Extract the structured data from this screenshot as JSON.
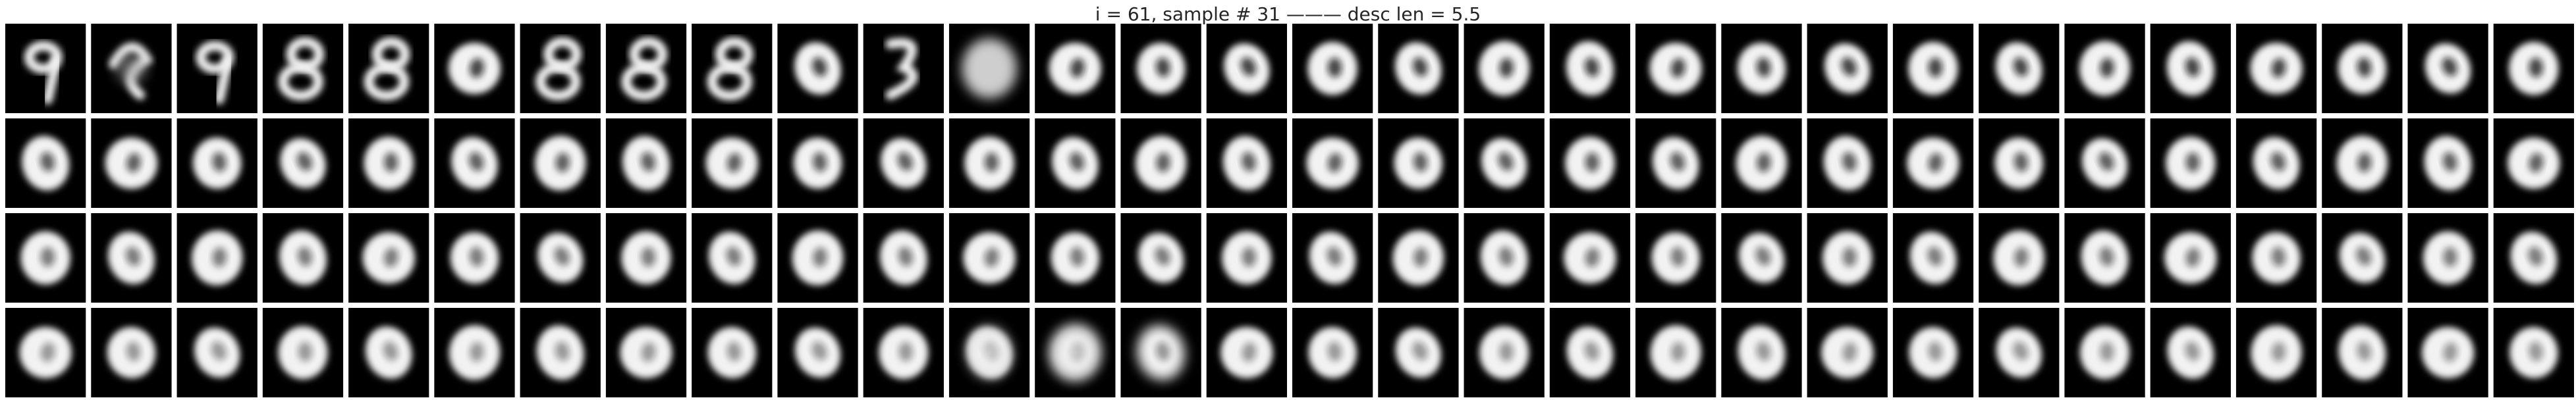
{
  "figure": {
    "title": "i = 61, sample # 31 ——— desc len = 5.5"
  },
  "grid": {
    "rows": 4,
    "cols": 30,
    "panels": [
      [
        "9",
        "scribble",
        "9",
        "8",
        "8",
        "0",
        "8",
        "8",
        "8",
        "0",
        "3",
        "blob",
        "0",
        "0",
        "0",
        "0",
        "0",
        "0",
        "0",
        "0",
        "0",
        "0",
        "0",
        "0",
        "0",
        "0",
        "0",
        "0",
        "0",
        "0"
      ],
      [
        "0",
        "0",
        "0",
        "0",
        "0",
        "0",
        "0",
        "0",
        "0",
        "0",
        "0",
        "0",
        "0",
        "0",
        "0",
        "0",
        "0",
        "0",
        "0",
        "0",
        "0",
        "0",
        "0",
        "0",
        "0",
        "0",
        "0",
        "0",
        "0",
        "0"
      ],
      [
        "0",
        "0",
        "0",
        "0",
        "0",
        "0",
        "0",
        "0",
        "0",
        "0",
        "0",
        "0",
        "0",
        "0",
        "0",
        "0",
        "0",
        "0",
        "0",
        "0",
        "0",
        "0",
        "0",
        "0",
        "0",
        "0",
        "0",
        "0",
        "0",
        "0"
      ],
      [
        "0",
        "0",
        "0",
        "0",
        "0",
        "0",
        "0",
        "0",
        "0",
        "0",
        "0",
        "0",
        "0",
        "0",
        "0",
        "0",
        "0",
        "0",
        "0",
        "0",
        "0",
        "0",
        "0",
        "0",
        "0",
        "0",
        "0",
        "0",
        "0",
        "0"
      ]
    ]
  },
  "colors": {
    "background": "#ffffff",
    "panel": "#000000",
    "digit": "#f2f2f2",
    "title": "#262626"
  }
}
